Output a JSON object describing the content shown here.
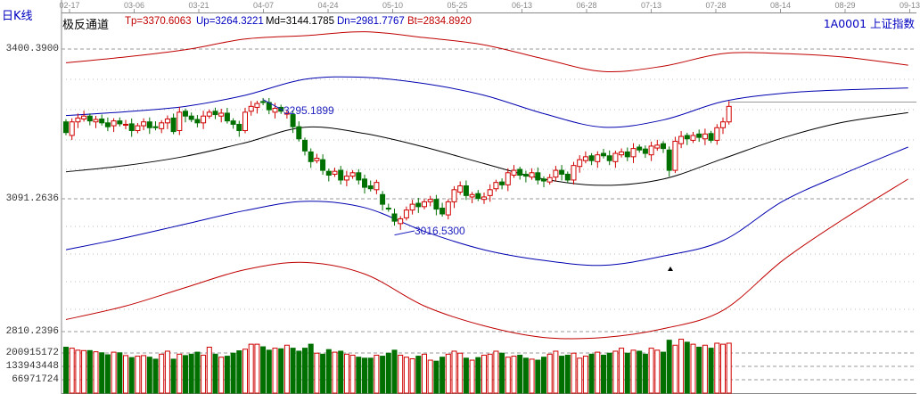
{
  "header": {
    "period_label": "日K线",
    "indicator_name": "极反通道",
    "params": [
      {
        "text": "Tp=3370.6063",
        "color": "#c00000"
      },
      {
        "text": "Up=3264.3221",
        "color": "#0000c0"
      },
      {
        "text": "Md=3144.1785",
        "color": "#000000"
      },
      {
        "text": "Dn=2981.7767",
        "color": "#0000c0"
      },
      {
        "text": "Bt=2834.8920",
        "color": "#c00000"
      }
    ],
    "symbol": "1A0001  上证指数"
  },
  "colors": {
    "up": "#d00000",
    "down": "#007000",
    "tp": "#c00000",
    "band_blue": "#0000b0",
    "mid": "#000000"
  },
  "chart_data": {
    "type": "candlestick",
    "date_ticks": [
      "02-17",
      "03-06",
      "03-21",
      "04-07",
      "04-24",
      "05-10",
      "05-25",
      "06-13",
      "06-28",
      "07-13",
      "07-28",
      "08-14",
      "08-29",
      "09-13"
    ],
    "price_axis_labels": [
      "3400.3900",
      "3091.2636",
      "2810.2396"
    ],
    "price_axis_values": [
      3400.39,
      3091.2636,
      2810.2396
    ],
    "volume_axis_labels": [
      "200915172",
      "133943448",
      "66971724"
    ],
    "volume_axis_values": [
      200915172,
      133943448,
      66971724
    ],
    "annotations": [
      {
        "text": "3295.1899",
        "kind": "high"
      },
      {
        "text": "3016.5300",
        "kind": "low"
      }
    ],
    "open": [
      3250,
      3222,
      3250,
      3256,
      3262,
      3250,
      3256,
      3248,
      3242,
      3252,
      3244,
      3246,
      3232,
      3242,
      3250,
      3240,
      3236,
      3248,
      3258,
      3232,
      3272,
      3262,
      3255,
      3248,
      3262,
      3272,
      3262,
      3268,
      3252,
      3245,
      3232,
      3272,
      3280,
      3292,
      3290,
      3270,
      3280,
      3266,
      3265,
      3240,
      3212,
      3188,
      3170,
      3172,
      3148,
      3142,
      3150,
      3130,
      3138,
      3145,
      3132,
      3118,
      3110,
      3100,
      3072,
      3060,
      3040,
      3052,
      3068,
      3082,
      3075,
      3085,
      3090,
      3072,
      3058,
      3085,
      3105,
      3118,
      3095,
      3102,
      3090,
      3098,
      3112,
      3126,
      3120,
      3140,
      3152,
      3142,
      3136,
      3145,
      3132,
      3126,
      3136,
      3150,
      3142,
      3130,
      3158,
      3170,
      3180,
      3168,
      3185,
      3180,
      3168,
      3182,
      3188,
      3178,
      3198,
      3194,
      3182,
      3196,
      3205,
      3192,
      3150,
      3205,
      3222,
      3212,
      3225,
      3215,
      3226,
      3212,
      3238,
      3250
    ],
    "close": [
      3228,
      3250,
      3258,
      3262,
      3252,
      3255,
      3248,
      3240,
      3252,
      3246,
      3245,
      3232,
      3242,
      3250,
      3238,
      3238,
      3248,
      3256,
      3230,
      3270,
      3262,
      3255,
      3248,
      3262,
      3270,
      3265,
      3268,
      3252,
      3245,
      3232,
      3270,
      3282,
      3288,
      3290,
      3275,
      3278,
      3272,
      3268,
      3240,
      3215,
      3190,
      3168,
      3175,
      3150,
      3140,
      3148,
      3130,
      3138,
      3145,
      3130,
      3115,
      3112,
      3125,
      3080,
      3070,
      3045,
      3050,
      3068,
      3080,
      3075,
      3085,
      3090,
      3070,
      3060,
      3085,
      3110,
      3118,
      3098,
      3100,
      3092,
      3095,
      3110,
      3125,
      3120,
      3145,
      3150,
      3140,
      3138,
      3145,
      3130,
      3128,
      3135,
      3150,
      3142,
      3130,
      3160,
      3172,
      3178,
      3170,
      3182,
      3180,
      3170,
      3185,
      3188,
      3178,
      3195,
      3192,
      3185,
      3200,
      3202,
      3195,
      3150,
      3210,
      3220,
      3215,
      3222,
      3218,
      3225,
      3212,
      3238,
      3250,
      3282
    ],
    "volume_millions": [
      230,
      225,
      215,
      213,
      213,
      207,
      202,
      192,
      205,
      202,
      188,
      178,
      185,
      188,
      180,
      170,
      195,
      210,
      170,
      195,
      188,
      195,
      205,
      190,
      230,
      195,
      180,
      185,
      200,
      212,
      220,
      245,
      245,
      232,
      215,
      225,
      222,
      240,
      225,
      210,
      225,
      245,
      200,
      195,
      218,
      205,
      210,
      195,
      190,
      180,
      175,
      175,
      190,
      185,
      200,
      215,
      190,
      180,
      172,
      185,
      195,
      165,
      160,
      180,
      195,
      210,
      200,
      175,
      165,
      178,
      190,
      195,
      210,
      200,
      180,
      185,
      190,
      175,
      170,
      165,
      180,
      195,
      210,
      185,
      190,
      200,
      175,
      185,
      195,
      205,
      190,
      200,
      210,
      225,
      200,
      215,
      210,
      195,
      225,
      215,
      205,
      265,
      240,
      270,
      255,
      245,
      230,
      240,
      225,
      250,
      245,
      250
    ],
    "band_sample_index": [
      0,
      10,
      20,
      30,
      40,
      50,
      60,
      70,
      80,
      90,
      100,
      110,
      120,
      130,
      141
    ],
    "bands": [
      {
        "name": "Tp",
        "color": "#c00000",
        "values": [
          3372,
          3384,
          3399,
          3421,
          3428,
          3436,
          3424,
          3409,
          3380,
          3354,
          3365,
          3391,
          3391,
          3384,
          3367
        ]
      },
      {
        "name": "Up",
        "color": "#0000b0",
        "values": [
          3263,
          3271,
          3282,
          3305,
          3338,
          3342,
          3329,
          3305,
          3267,
          3239,
          3254,
          3292,
          3309,
          3316,
          3320
        ]
      },
      {
        "name": "Md",
        "color": "#000000",
        "values": [
          3147,
          3160,
          3179,
          3207,
          3239,
          3226,
          3198,
          3164,
          3132,
          3119,
          3132,
          3174,
          3217,
          3249,
          3269
        ]
      },
      {
        "name": "Dn",
        "color": "#0000b0",
        "values": [
          2986,
          3011,
          3039,
          3067,
          3086,
          3073,
          3024,
          2986,
          2964,
          2954,
          2973,
          3005,
          3086,
          3142,
          3198
        ]
      },
      {
        "name": "Bt",
        "color": "#c00000",
        "values": [
          2842,
          2870,
          2908,
          2945,
          2960,
          2936,
          2870,
          2829,
          2805,
          2805,
          2823,
          2861,
          2964,
          3048,
          3132
        ]
      }
    ]
  }
}
